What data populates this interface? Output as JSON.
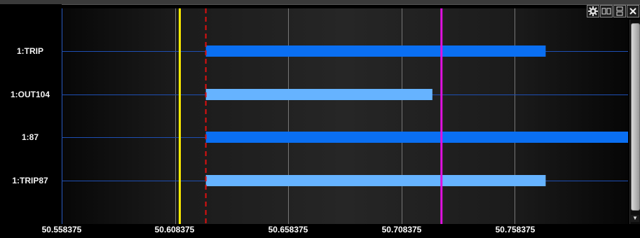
{
  "colors": {
    "row_line": "#1e4fb4",
    "bar_dark": "#0a6ff2",
    "bar_light": "#66b3ff",
    "gridline": "#777777",
    "cursor_yellow": "#ffee00",
    "cursor_red_dashed": "#e01010",
    "cursor_magenta": "#e010e0"
  },
  "toolbar": {
    "settings_icon": "gear-icon",
    "split_horizontal_icon": "split-columns-icon",
    "split_vertical_icon": "split-rows-icon",
    "close_icon": "close-icon"
  },
  "x_axis": {
    "range": [
      50.558375,
      50.808375
    ],
    "ticks": [
      {
        "value": 50.558375,
        "label": "50.558375"
      },
      {
        "value": 50.608375,
        "label": "50.608375"
      },
      {
        "value": 50.658375,
        "label": "50.658375"
      },
      {
        "value": 50.708375,
        "label": "50.708375"
      },
      {
        "value": 50.758375,
        "label": "50.758375"
      }
    ]
  },
  "signals": [
    {
      "label": "1:TRIP",
      "start": 50.622,
      "end": 50.772,
      "style": "dark"
    },
    {
      "label": "1:OUT104",
      "start": 50.622,
      "end": 50.722,
      "style": "light"
    },
    {
      "label": "1:87",
      "start": 50.622,
      "end": 50.808375,
      "style": "dark"
    },
    {
      "label": "1:TRIP87",
      "start": 50.622,
      "end": 50.772,
      "style": "light"
    }
  ],
  "cursors": [
    {
      "name": "reference",
      "value": 50.608375,
      "style": "grid"
    },
    {
      "name": "yellow",
      "value": 50.6105,
      "style": "solid-yellow"
    },
    {
      "name": "trigger",
      "value": 50.622,
      "style": "dashed-red"
    },
    {
      "name": "magenta",
      "value": 50.726,
      "style": "solid-magenta"
    }
  ]
}
